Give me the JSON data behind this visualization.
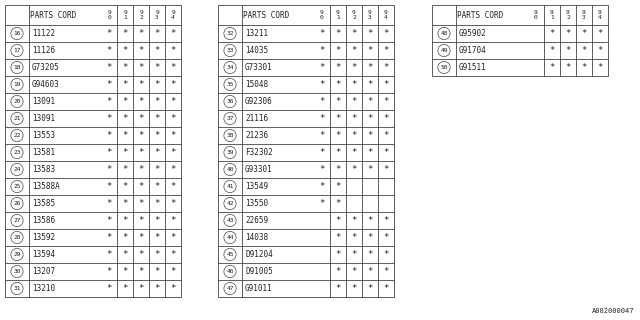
{
  "bg_color": "#ffffff",
  "line_color": "#444444",
  "text_color": "#222222",
  "footer_text": "A002000047",
  "col_headers": [
    "9\n0",
    "9\n1",
    "9\n2",
    "9\n3",
    "9\n4"
  ],
  "tables": [
    {
      "rows": [
        {
          "num": "16",
          "part": "11122",
          "cols": [
            1,
            1,
            1,
            1,
            1
          ]
        },
        {
          "num": "17",
          "part": "11126",
          "cols": [
            1,
            1,
            1,
            1,
            1
          ]
        },
        {
          "num": "18",
          "part": "G73205",
          "cols": [
            1,
            1,
            1,
            1,
            1
          ]
        },
        {
          "num": "19",
          "part": "G94603",
          "cols": [
            1,
            1,
            1,
            1,
            1
          ]
        },
        {
          "num": "20",
          "part": "13091",
          "cols": [
            1,
            1,
            1,
            1,
            1
          ]
        },
        {
          "num": "21",
          "part": "13091",
          "cols": [
            1,
            1,
            1,
            1,
            1
          ]
        },
        {
          "num": "22",
          "part": "13553",
          "cols": [
            1,
            1,
            1,
            1,
            1
          ]
        },
        {
          "num": "23",
          "part": "13581",
          "cols": [
            1,
            1,
            1,
            1,
            1
          ]
        },
        {
          "num": "24",
          "part": "13583",
          "cols": [
            1,
            1,
            1,
            1,
            1
          ]
        },
        {
          "num": "25",
          "part": "13588A",
          "cols": [
            1,
            1,
            1,
            1,
            1
          ]
        },
        {
          "num": "26",
          "part": "13585",
          "cols": [
            1,
            1,
            1,
            1,
            1
          ]
        },
        {
          "num": "27",
          "part": "13586",
          "cols": [
            1,
            1,
            1,
            1,
            1
          ]
        },
        {
          "num": "28",
          "part": "13592",
          "cols": [
            1,
            1,
            1,
            1,
            1
          ]
        },
        {
          "num": "29",
          "part": "13594",
          "cols": [
            1,
            1,
            1,
            1,
            1
          ]
        },
        {
          "num": "30",
          "part": "13207",
          "cols": [
            1,
            1,
            1,
            1,
            1
          ]
        },
        {
          "num": "31",
          "part": "13210",
          "cols": [
            1,
            1,
            1,
            1,
            1
          ]
        }
      ]
    },
    {
      "rows": [
        {
          "num": "32",
          "part": "13211",
          "cols": [
            1,
            1,
            1,
            1,
            1
          ]
        },
        {
          "num": "33",
          "part": "14035",
          "cols": [
            1,
            1,
            1,
            1,
            1
          ]
        },
        {
          "num": "34",
          "part": "G73301",
          "cols": [
            1,
            1,
            1,
            1,
            1
          ]
        },
        {
          "num": "35",
          "part": "15048",
          "cols": [
            1,
            1,
            1,
            1,
            1
          ]
        },
        {
          "num": "36",
          "part": "G92306",
          "cols": [
            1,
            1,
            1,
            1,
            1
          ]
        },
        {
          "num": "37",
          "part": "21116",
          "cols": [
            1,
            1,
            1,
            1,
            1
          ]
        },
        {
          "num": "38",
          "part": "21236",
          "cols": [
            1,
            1,
            1,
            1,
            1
          ]
        },
        {
          "num": "39",
          "part": "F32302",
          "cols": [
            1,
            1,
            1,
            1,
            1
          ]
        },
        {
          "num": "40",
          "part": "G93301",
          "cols": [
            1,
            1,
            1,
            1,
            1
          ]
        },
        {
          "num": "41",
          "part": "13549",
          "cols": [
            1,
            1,
            0,
            0,
            0
          ]
        },
        {
          "num": "42",
          "part": "13550",
          "cols": [
            1,
            1,
            0,
            0,
            0
          ]
        },
        {
          "num": "43",
          "part": "22659",
          "cols": [
            0,
            1,
            1,
            1,
            1
          ]
        },
        {
          "num": "44",
          "part": "14038",
          "cols": [
            0,
            1,
            1,
            1,
            1
          ]
        },
        {
          "num": "45",
          "part": "D91204",
          "cols": [
            0,
            1,
            1,
            1,
            1
          ]
        },
        {
          "num": "46",
          "part": "D91005",
          "cols": [
            0,
            1,
            1,
            1,
            1
          ]
        },
        {
          "num": "47",
          "part": "G91011",
          "cols": [
            0,
            1,
            1,
            1,
            1
          ]
        }
      ]
    },
    {
      "rows": [
        {
          "num": "48",
          "part": "G95902",
          "cols": [
            0,
            1,
            1,
            1,
            1
          ]
        },
        {
          "num": "49",
          "part": "G91704",
          "cols": [
            0,
            1,
            1,
            1,
            1
          ]
        },
        {
          "num": "50",
          "part": "G91511",
          "cols": [
            0,
            1,
            1,
            1,
            1
          ]
        }
      ]
    }
  ]
}
